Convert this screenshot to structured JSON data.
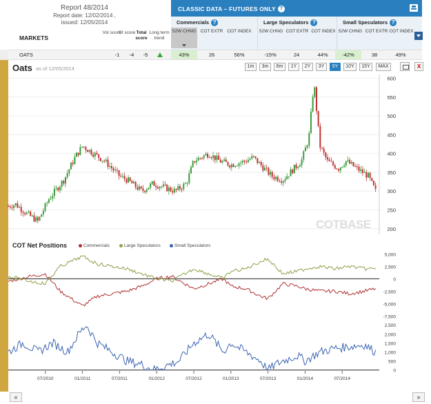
{
  "report": {
    "number": "Report 48/2014",
    "date": "Report date: 12/02/2014 ,",
    "issued": "issued: 12/05/2014"
  },
  "markets_label": "MARKETS",
  "columns": [
    {
      "text": "Vol score",
      "bold": false
    },
    {
      "text": "OI score",
      "bold": false
    },
    {
      "text": "Total score",
      "bold": true
    },
    {
      "text": "Long term trend",
      "bold": false
    }
  ],
  "banner": {
    "title": "CLASSIC DATA – FUTURES ONLY",
    "help": "?"
  },
  "groups": [
    {
      "name": "Commercials",
      "subs": [
        "52W CHNG",
        "COT EXTR",
        "COT INDEX"
      ]
    },
    {
      "name": "Large Speculators",
      "subs": [
        "52W CHNG",
        "COT EXTR",
        "COT INDEX"
      ]
    },
    {
      "name": "Small Speculators",
      "subs": [
        "52W CHNG",
        "COT EXTR",
        "COT INDEX"
      ]
    }
  ],
  "row": {
    "market": "OATS",
    "vol": "-1",
    "oi": "-4",
    "total": "-5",
    "values": [
      "43%",
      "26",
      "56%",
      "-15%",
      "24",
      "44%",
      "-42%",
      "38",
      "49%"
    ]
  },
  "chart": {
    "title": "Oats",
    "asof": "as of 12/05/2014"
  },
  "range_buttons": [
    "1m",
    "3m",
    "6m",
    "1Y",
    "2Y",
    "3Y",
    "5Y",
    "10Y",
    "15Y",
    "MAX"
  ],
  "range_selected": "5Y",
  "close_label": "X",
  "watermark": "COTBASE",
  "net_title": "COT Net Positions",
  "legend": [
    {
      "name": "Commercials",
      "color": "#b03030"
    },
    {
      "name": "Large Speculators",
      "color": "#8aa048"
    },
    {
      "name": "Small Speculators",
      "color": "#3a64b0"
    }
  ],
  "nav": {
    "prev": "«",
    "next": "»"
  },
  "chart_data": [
    {
      "type": "candlestick",
      "title": "Oats",
      "y_ticks": [
        200,
        250,
        300,
        350,
        400,
        450,
        500,
        550,
        600
      ],
      "ylim": [
        185,
        610
      ],
      "x_ticks": [
        "07/2010",
        "01/2011",
        "07/2011",
        "01/2012",
        "07/2012",
        "01/2013",
        "07/2013",
        "01/2014",
        "07/2014"
      ],
      "x_tick_t": [
        0.5,
        1.0,
        1.5,
        2.0,
        2.5,
        3.0,
        3.5,
        4.0,
        4.5
      ],
      "trend_t": [
        0,
        0.1,
        0.25,
        0.4,
        0.55,
        0.75,
        0.9,
        1.0,
        1.15,
        1.3,
        1.5,
        1.6,
        1.8,
        1.95,
        2.1,
        2.25,
        2.4,
        2.5,
        2.7,
        2.85,
        3.0,
        3.2,
        3.3,
        3.45,
        3.55,
        3.7,
        3.85,
        3.95,
        4.05,
        4.12,
        4.2,
        4.3,
        4.45,
        4.55,
        4.7,
        4.85,
        4.95
      ],
      "trend_price": [
        260,
        265,
        240,
        220,
        280,
        330,
        390,
        420,
        400,
        380,
        340,
        330,
        300,
        320,
        310,
        300,
        320,
        380,
        400,
        380,
        370,
        380,
        390,
        360,
        340,
        330,
        360,
        380,
        440,
        590,
        420,
        380,
        360,
        380,
        360,
        340,
        300
      ]
    },
    {
      "type": "line",
      "title": "COT Net Positions",
      "y_ticks": [
        -7500,
        -5000,
        -2500,
        0,
        2500,
        5000
      ],
      "ylim": [
        -8000,
        5600
      ],
      "series": [
        {
          "name": "Commercials",
          "color": "#b03030",
          "t": [
            0,
            0.3,
            0.5,
            0.7,
            0.85,
            1.0,
            1.2,
            1.4,
            1.6,
            1.8,
            2.0,
            2.2,
            2.5,
            2.7,
            2.9,
            3.0,
            3.2,
            3.4,
            3.5,
            3.7,
            3.9,
            4.0,
            4.2,
            4.4,
            4.6,
            4.8,
            4.95
          ],
          "v": [
            -500,
            500,
            1000,
            -2500,
            -4000,
            -5500,
            -3500,
            -3000,
            -2500,
            -1500,
            0,
            500,
            -2000,
            -1000,
            0,
            -1500,
            -2000,
            -3500,
            -4000,
            -1000,
            -1500,
            -2000,
            -2500,
            -2500,
            -3000,
            -2500,
            -2000
          ]
        },
        {
          "name": "Large Speculators",
          "color": "#8aa048",
          "t": [
            0,
            0.3,
            0.5,
            0.7,
            0.85,
            1.0,
            1.2,
            1.4,
            1.6,
            1.8,
            2.0,
            2.2,
            2.5,
            2.7,
            2.9,
            3.0,
            3.2,
            3.4,
            3.5,
            3.7,
            3.9,
            4.0,
            4.2,
            4.4,
            4.6,
            4.8,
            4.95
          ],
          "v": [
            500,
            -500,
            -1000,
            2500,
            3500,
            4500,
            3000,
            2500,
            2000,
            1000,
            0,
            -500,
            2000,
            1000,
            0,
            1500,
            2000,
            3500,
            4000,
            1000,
            1500,
            2000,
            2500,
            2000,
            2500,
            2000,
            2000
          ]
        },
        {
          "name": "Small Speculators",
          "color": "#3a64b0",
          "t": [
            0,
            0.2,
            0.4,
            0.6,
            0.8,
            0.95,
            1.05,
            1.2,
            1.4,
            1.6,
            1.8,
            1.95,
            2.1,
            2.3,
            2.5,
            2.7,
            2.9,
            3.0,
            3.2,
            3.4,
            3.5,
            3.6,
            3.7,
            3.9,
            4.0,
            4.2,
            4.4,
            4.6,
            4.8,
            4.95
          ],
          "v": [
            1000,
            1500,
            1000,
            1500,
            1000,
            2000,
            2500,
            1500,
            1000,
            500,
            300,
            0,
            200,
            500,
            1500,
            2000,
            1000,
            1500,
            1000,
            500,
            0,
            300,
            500,
            800,
            500,
            1000,
            1200,
            1300,
            1400,
            1000
          ]
        }
      ]
    },
    {
      "type": "line",
      "title": "",
      "y_ticks": [
        0,
        500,
        1000,
        1500,
        2000,
        2500
      ],
      "ylim": [
        -50,
        2700
      ],
      "series": []
    }
  ]
}
